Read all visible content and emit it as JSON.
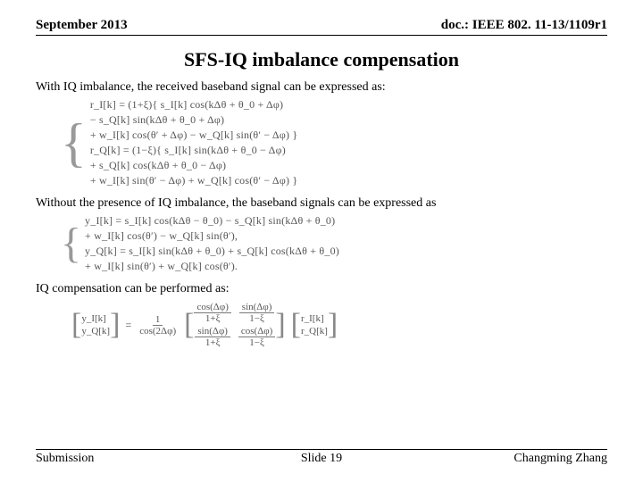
{
  "header": {
    "date": "September 2013",
    "doc": "doc.: IEEE 802. 11-13/1109r1"
  },
  "title": "SFS-IQ imbalance compensation",
  "para1": "With IQ imbalance, the received baseband signal can be expressed as:",
  "eq1": {
    "l1": "r_I[k] = (1+ξ){ s_I[k] cos(kΔθ + θ_0 + Δφ)",
    "l2": "        − s_Q[k] sin(kΔθ + θ_0 + Δφ)",
    "l3": "        + w_I[k] cos(θ′ + Δφ) − w_Q[k] sin(θ′ − Δφ) }",
    "l4": "r_Q[k] = (1−ξ){ s_I[k] sin(kΔθ + θ_0 − Δφ)",
    "l5": "        + s_Q[k] cos(kΔθ + θ_0 − Δφ)",
    "l6": "        + w_I[k] sin(θ′ − Δφ) + w_Q[k] cos(θ′ − Δφ) }"
  },
  "para2": "Without the presence of IQ imbalance, the baseband signals can be expressed as",
  "eq2": {
    "l1": "y_I[k] = s_I[k] cos(kΔθ − θ_0) − s_Q[k] sin(kΔθ + θ_0)",
    "l2": "        + w_I[k] cos(θ′) − w_Q[k] sin(θ′),",
    "l3": "y_Q[k] = s_I[k] sin(kΔθ + θ_0) + s_Q[k] cos(kΔθ + θ_0)",
    "l4": "        + w_I[k] sin(θ′) + w_Q[k] cos(θ′)."
  },
  "para3": "IQ compensation can be performed as:",
  "comp": {
    "y1": "y_I[k]",
    "y2": "y_Q[k]",
    "scalar_num": "1",
    "scalar_den": "cos(2Δφ)",
    "m11_num": "cos(Δφ)",
    "m11_den": "1+ξ",
    "m12_num": "sin(Δφ)",
    "m12_den": "1−ξ",
    "m21_num": "sin(Δφ)",
    "m21_den": "1+ξ",
    "m22_num": "cos(Δφ)",
    "m22_den": "1−ξ",
    "r1": "r_I[k]",
    "r2": "r_Q[k]"
  },
  "footer": {
    "left": "Submission",
    "center": "Slide 19",
    "right": "Changming Zhang"
  }
}
